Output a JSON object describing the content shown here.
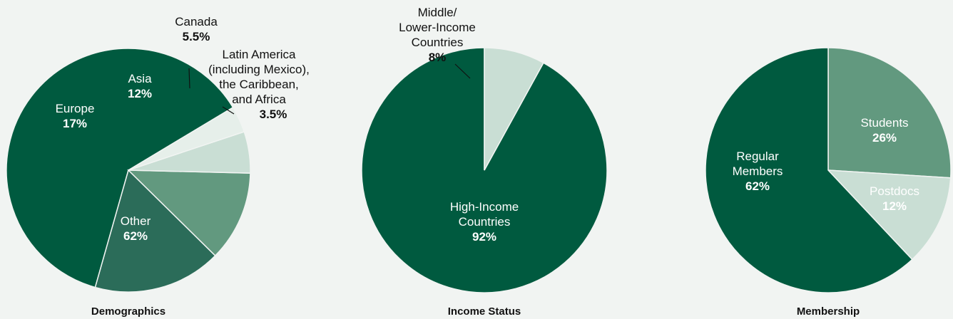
{
  "colors": {
    "dark": "#005a3f",
    "mid_dark": "#2b6c59",
    "mid": "#62997f",
    "light": "#c9ded4",
    "lightest": "#e6efea",
    "inside_text": "#ffffff",
    "outside_text": "#111111"
  },
  "chart_data": [
    {
      "type": "pie",
      "title": "Demographics",
      "slices": [
        {
          "label": "Other",
          "value": 62,
          "value_label": "62%",
          "color": "#005a3f",
          "label_pos": "inside"
        },
        {
          "label": "Europe",
          "value": 17,
          "value_label": "17%",
          "color": "#2b6c59",
          "label_pos": "inside"
        },
        {
          "label": "Asia",
          "value": 12,
          "value_label": "12%",
          "color": "#62997f",
          "label_pos": "inside"
        },
        {
          "label": "Canada",
          "value": 5.5,
          "value_label": "5.5%",
          "color": "#c9ded4",
          "label_pos": "outside"
        },
        {
          "label": "Latin America (including Mexico), the Caribbean, and Africa",
          "value": 3.5,
          "value_label": "3.5%",
          "color": "#e6efea",
          "label_pos": "outside"
        }
      ]
    },
    {
      "type": "pie",
      "title": "Income Status",
      "slices": [
        {
          "label": "High-Income Countries",
          "value": 92,
          "value_label": "92%",
          "color": "#005a3f",
          "label_pos": "inside"
        },
        {
          "label": "Middle/ Lower-Income Countries",
          "value": 8,
          "value_label": "8%",
          "color": "#c9ded4",
          "label_pos": "outside"
        }
      ]
    },
    {
      "type": "pie",
      "title": "Membership",
      "slices": [
        {
          "label": "Students",
          "value": 26,
          "value_label": "26%",
          "color": "#62997f",
          "label_pos": "inside"
        },
        {
          "label": "Postdocs",
          "value": 12,
          "value_label": "12%",
          "color": "#c9ded4",
          "label_pos": "inside"
        },
        {
          "label": "Regular Members",
          "value": 62,
          "value_label": "62%",
          "color": "#005a3f",
          "label_pos": "inside"
        }
      ]
    }
  ]
}
